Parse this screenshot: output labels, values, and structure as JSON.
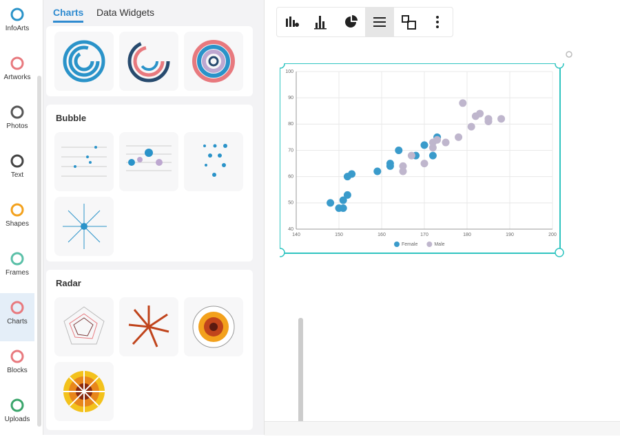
{
  "sidebar": {
    "items": [
      "InfoArts",
      "Artworks",
      "Photos",
      "Text",
      "Shapes",
      "Frames",
      "Charts",
      "Blocks",
      "Uploads"
    ],
    "active": 6
  },
  "panel": {
    "tabs": [
      "Charts",
      "Data Widgets"
    ],
    "sections": [
      {
        "title": "Bubble"
      },
      {
        "title": "Radar"
      }
    ]
  },
  "chart": {
    "type": "scatter",
    "xlim": [
      140,
      200
    ],
    "xticks": [
      140,
      150,
      160,
      170,
      180,
      190,
      200
    ],
    "ylim": [
      40,
      100
    ],
    "yticks": [
      40,
      50,
      60,
      70,
      80,
      90,
      100
    ],
    "grid": true,
    "series": [
      {
        "name": "Female",
        "color": "#3a9bcb",
        "x": [
          148,
          151,
          150,
          151,
          152,
          152,
          153,
          159,
          162,
          162,
          164,
          168,
          170,
          172,
          173
        ],
        "values": [
          50,
          51,
          48,
          48,
          53,
          60,
          61,
          62,
          64,
          65,
          70,
          68,
          72,
          68,
          75
        ]
      },
      {
        "name": "Male",
        "color": "#bfb6cd",
        "x": [
          165,
          165,
          167,
          170,
          172,
          172,
          173,
          175,
          178,
          179,
          181,
          182,
          183,
          185,
          185,
          188
        ],
        "values": [
          64,
          62,
          68,
          65,
          71,
          73,
          74,
          73,
          75,
          88,
          79,
          83,
          84,
          82,
          81,
          82
        ]
      }
    ]
  }
}
